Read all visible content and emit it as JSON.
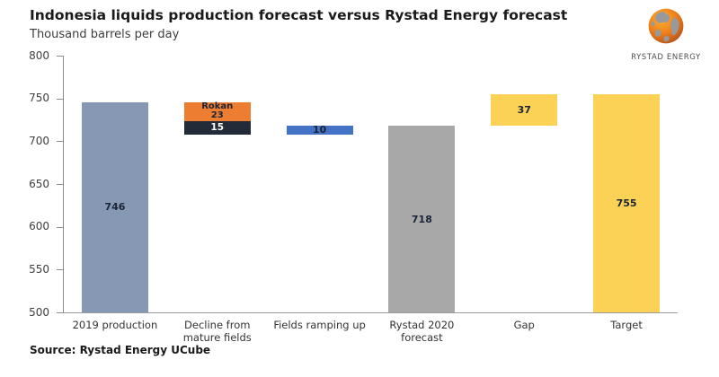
{
  "header": {
    "title": "Indonesia liquids production forecast versus Rystad Energy forecast",
    "subtitle": "Thousand barrels per day"
  },
  "logo": {
    "brand": "RYSTAD ENERGY",
    "icon": "globe-icon"
  },
  "footer": {
    "source": "Source: Rystad Energy UCube"
  },
  "colors": {
    "blue_gray": "#8698B4",
    "orange": "#ED7D31",
    "navy": "#232B38",
    "blue": "#4472C4",
    "gray": "#A8A8A8",
    "yellow": "#FBD255",
    "label_dark": "#1B2537",
    "label_white": "#FFFFFF",
    "axis": "#8C8C8C",
    "tick_text": "#404040",
    "logo_orange": "#EF7F1A",
    "logo_gray": "#97999C"
  },
  "chart_data": {
    "type": "bar",
    "subtype": "waterfall",
    "title": "Indonesia liquids production forecast versus Rystad Energy forecast",
    "ylabel": "Thousand barrels per day",
    "xlabel": "",
    "ylim": [
      500,
      800
    ],
    "yticks": [
      800,
      750,
      700,
      650,
      600,
      550,
      500
    ],
    "grid": false,
    "legend": false,
    "categories": [
      "2019 production",
      "Decline from mature fields",
      "Fields ramping up",
      "Rystad 2020 forecast",
      "Gap",
      "Target"
    ],
    "columns": [
      {
        "label": "2019 production",
        "segments": [
          {
            "from": 500,
            "to": 746,
            "value": 746,
            "color": "blue_gray",
            "lines": [
              "746"
            ],
            "text_style": "dark"
          }
        ]
      },
      {
        "label": "Decline from mature fields",
        "segments": [
          {
            "from": 723,
            "to": 746,
            "value": 23,
            "color": "orange",
            "lines": [
              "Rokan",
              "23"
            ],
            "text_style": "dark"
          },
          {
            "from": 708,
            "to": 723,
            "value": 15,
            "color": "navy",
            "lines": [
              "15"
            ],
            "text_style": "white"
          }
        ]
      },
      {
        "label": "Fields ramping up",
        "segments": [
          {
            "from": 708,
            "to": 718,
            "value": 10,
            "color": "blue",
            "lines": [
              "10"
            ],
            "text_style": "dark"
          }
        ]
      },
      {
        "label": "Rystad 2020 forecast",
        "segments": [
          {
            "from": 500,
            "to": 718,
            "value": 718,
            "color": "gray",
            "lines": [
              "718"
            ],
            "text_style": "dark"
          }
        ]
      },
      {
        "label": "Gap",
        "segments": [
          {
            "from": 718,
            "to": 755,
            "value": 37,
            "color": "yellow",
            "lines": [
              "37"
            ],
            "text_style": "dark"
          }
        ]
      },
      {
        "label": "Target",
        "segments": [
          {
            "from": 500,
            "to": 755,
            "value": 755,
            "color": "yellow",
            "lines": [
              "755"
            ],
            "text_style": "dark"
          }
        ]
      }
    ]
  }
}
